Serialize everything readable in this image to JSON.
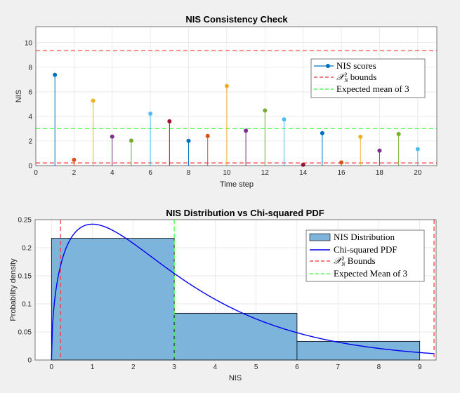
{
  "chart_data": [
    {
      "type": "stem",
      "title": "NIS Consistency Check",
      "xlabel": "Time step",
      "ylabel": "NIS",
      "xlim": [
        0,
        21
      ],
      "ylim": [
        0,
        11.3
      ],
      "xticks": [
        0,
        2,
        4,
        6,
        8,
        10,
        12,
        14,
        16,
        18,
        20
      ],
      "yticks": [
        0,
        2,
        4,
        6,
        8,
        10
      ],
      "grid": true,
      "legend_position": "right",
      "series": [
        {
          "name": "NIS scores",
          "x": [
            1,
            2,
            3,
            4,
            5,
            6,
            7,
            8,
            9,
            10,
            11,
            12,
            13,
            14,
            15,
            16,
            17,
            18,
            19,
            20
          ],
          "values": [
            7.38,
            0.47,
            5.28,
            2.36,
            2.03,
            4.22,
            3.6,
            2.01,
            2.41,
            6.48,
            2.84,
            4.48,
            3.76,
            0.07,
            2.64,
            0.26,
            2.35,
            1.22,
            2.57,
            1.34
          ],
          "colors": [
            "#0072BD",
            "#D95319",
            "#EDB120",
            "#7E2F8E",
            "#77AC30",
            "#4DBEEE",
            "#A2142F",
            "#0072BD",
            "#D95319",
            "#EDB120",
            "#7E2F8E",
            "#77AC30",
            "#4DBEEE",
            "#A2142F",
            "#0072BD",
            "#D95319",
            "#EDB120",
            "#7E2F8E",
            "#77AC30",
            "#4DBEEE"
          ]
        }
      ],
      "bounds": {
        "name": "$\\mathcal{X}_N^2$ bounds",
        "lower": 0.22,
        "upper": 9.35,
        "color": "#ff3333"
      },
      "expected_mean": {
        "name": "Expected mean of 3",
        "value": 3,
        "color": "#33ff33"
      }
    },
    {
      "type": "histogram",
      "title": "NIS Distribution vs Chi-squared PDF",
      "xlabel": "NIS",
      "ylabel": "Probability density",
      "xlim": [
        -0.4,
        9.4
      ],
      "ylim": [
        0,
        0.25
      ],
      "xticks": [
        0,
        1,
        2,
        3,
        4,
        5,
        6,
        7,
        8,
        9
      ],
      "yticks": [
        0,
        0.05,
        0.1,
        0.15,
        0.2,
        0.25
      ],
      "ytick_labels": [
        "0",
        "0.05",
        "0.1",
        "0.15",
        "0.2",
        "0.25"
      ],
      "grid": true,
      "legend_position": "top-right",
      "bins": [
        {
          "start": 0,
          "end": 3,
          "value": 0.2167
        },
        {
          "start": 3,
          "end": 6,
          "value": 0.0833
        },
        {
          "start": 6,
          "end": 9,
          "value": 0.0333
        }
      ],
      "bar_color": "#7db4dc",
      "pdf": {
        "name": "Chi-squared PDF",
        "dof": 3,
        "color": "#0000ee"
      },
      "bounds": {
        "name": "$\\mathcal{X}_N^2$ Bounds",
        "lower": 0.22,
        "upper": 9.35,
        "color": "#ff3333"
      },
      "expected_mean": {
        "name": "Expected Mean of 3",
        "value": 3,
        "color": "#33ff33"
      },
      "hist_name": "NIS Distribution"
    }
  ]
}
